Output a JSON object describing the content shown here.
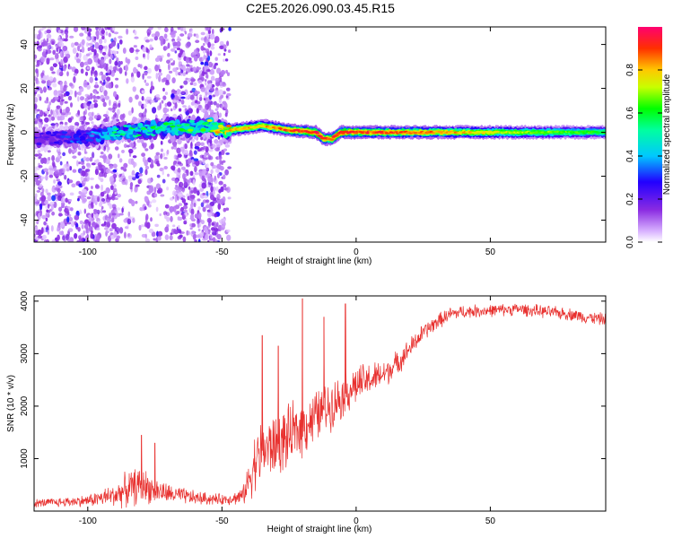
{
  "figure_title": "C2E5.2026.090.03.45.R15",
  "chart_data": [
    {
      "type": "heatmap",
      "xlabel": "Height of straight line (km)",
      "ylabel": "Frequency (Hz)",
      "xlim": [
        -120,
        93
      ],
      "ylim": [
        -50,
        48
      ],
      "xticks": [
        -100,
        -50,
        0,
        50
      ],
      "yticks": [
        -40,
        -20,
        0,
        20,
        40
      ],
      "colorbar": {
        "label": "Normalized spectral amplitude",
        "range": [
          0,
          1
        ],
        "ticks": [
          0.0,
          0.2,
          0.4,
          0.6,
          0.8
        ],
        "tick_labels": [
          "0.0",
          "0.2",
          "0.4",
          "0.6",
          "0.8"
        ]
      },
      "noise_region": {
        "x": [
          -120,
          -47
        ],
        "y": [
          -50,
          48
        ],
        "typical_amplitude": 0.1
      },
      "noise_clusters_x": [
        -118,
        -110,
        -100,
        -93,
        -65,
        -58,
        -53
      ],
      "ridge": [
        {
          "x": -120,
          "freq": -3,
          "amplitude": 0.2
        },
        {
          "x": -100,
          "freq": -2,
          "amplitude": 0.3
        },
        {
          "x": -90,
          "freq": 0,
          "amplitude": 0.45
        },
        {
          "x": -70,
          "freq": 2,
          "amplitude": 0.5
        },
        {
          "x": -55,
          "freq": 3,
          "amplitude": 0.55
        },
        {
          "x": -47,
          "freq": 1,
          "amplitude": 0.8
        },
        {
          "x": -35,
          "freq": 3,
          "amplitude": 0.8
        },
        {
          "x": -25,
          "freq": 1,
          "amplitude": 0.9
        },
        {
          "x": -15,
          "freq": 0,
          "amplitude": 0.95
        },
        {
          "x": -12,
          "freq": -3,
          "amplitude": 0.9
        },
        {
          "x": -9,
          "freq": -3,
          "amplitude": 0.9
        },
        {
          "x": -6,
          "freq": 0,
          "amplitude": 0.95
        },
        {
          "x": 2,
          "freq": 0,
          "amplitude": 0.9
        },
        {
          "x": 30,
          "freq": 0,
          "amplitude": 0.85
        },
        {
          "x": 60,
          "freq": 0,
          "amplitude": 0.7
        },
        {
          "x": 93,
          "freq": 0,
          "amplitude": 0.6
        }
      ]
    },
    {
      "type": "line",
      "xlabel": "Height of straight line (km)",
      "ylabel": "SNR (10 * v/v)",
      "xlim": [
        -120,
        93
      ],
      "ylim": [
        0,
        4100
      ],
      "xticks": [
        -100,
        -50,
        0,
        50
      ],
      "yticks": [
        1000,
        2000,
        3000,
        4000
      ],
      "color": "#e8312f",
      "series": [
        {
          "name": "SNR",
          "x": [
            -120,
            -110,
            -100,
            -90,
            -85,
            -80,
            -75,
            -70,
            -60,
            -50,
            -45,
            -42,
            -40,
            -38,
            -35,
            -30,
            -25,
            -20,
            -15,
            -10,
            -5,
            0,
            5,
            10,
            15,
            20,
            25,
            30,
            35,
            40,
            50,
            60,
            70,
            80,
            85,
            93
          ],
          "y": [
            150,
            170,
            200,
            300,
            420,
            500,
            400,
            330,
            250,
            220,
            250,
            300,
            600,
            900,
            1150,
            1250,
            1400,
            1600,
            1800,
            2000,
            2200,
            2400,
            2500,
            2600,
            2800,
            3100,
            3400,
            3600,
            3750,
            3800,
            3820,
            3850,
            3800,
            3750,
            3700,
            3650
          ],
          "spread": [
            90,
            110,
            130,
            260,
            400,
            420,
            300,
            220,
            160,
            120,
            150,
            220,
            450,
            650,
            750,
            700,
            700,
            650,
            600,
            550,
            500,
            450,
            380,
            320,
            280,
            230,
            200,
            180,
            160,
            150,
            140,
            140,
            140,
            140,
            140,
            140
          ],
          "spikes": [
            {
              "x": -80,
              "y": 1450
            },
            {
              "x": -75,
              "y": 1300
            },
            {
              "x": -35,
              "y": 3350
            },
            {
              "x": -29,
              "y": 3150
            },
            {
              "x": -20,
              "y": 4050
            },
            {
              "x": -12,
              "y": 3700
            },
            {
              "x": -4,
              "y": 3950
            }
          ]
        }
      ]
    }
  ]
}
